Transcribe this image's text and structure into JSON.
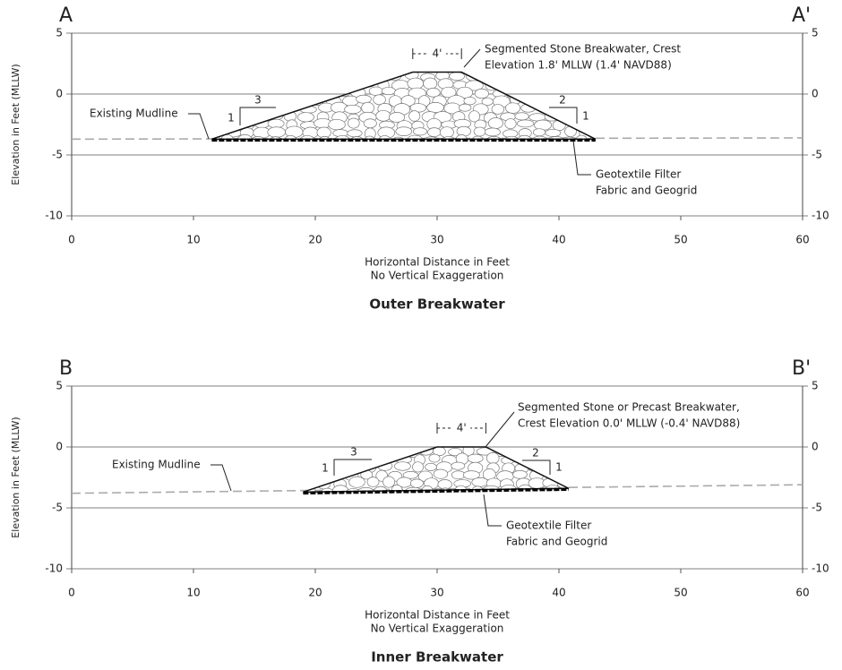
{
  "panels": [
    {
      "title": "Outer Breakwater",
      "section_start": "A",
      "section_end": "A'",
      "y_label": "Elevation in Feet (MLLW)",
      "x_label": "Horizontal Distance in Feet",
      "x_sublabel": "No Vertical Exaggeration",
      "xlim": [
        0,
        60
      ],
      "ylim": [
        -10,
        5
      ],
      "xticks": [
        0,
        10,
        20,
        30,
        40,
        50,
        60
      ],
      "yticks": [
        -10,
        -5,
        0,
        5
      ],
      "mudline": {
        "x": [
          0,
          60
        ],
        "y": [
          -3.7,
          -3.6
        ]
      },
      "breakwater": {
        "x": [
          11.5,
          28,
          32,
          43
        ],
        "y": [
          -3.7,
          1.8,
          1.8,
          -3.7
        ]
      },
      "crest_width_label": "4'",
      "slope_left": {
        "rise": "1",
        "run": "3"
      },
      "slope_right": {
        "run": "2",
        "rise": "1"
      },
      "annotations": {
        "crest": [
          "Segmented Stone Breakwater, Crest",
          "Elevation 1.8' MLLW (1.4' NAVD88)"
        ],
        "mudline": "Existing Mudline",
        "fabric": [
          "Geotextile Filter",
          "Fabric and Geogrid"
        ]
      }
    },
    {
      "title": "Inner Breakwater",
      "section_start": "B",
      "section_end": "B'",
      "y_label": "Elevation in Feet (MLLW)",
      "x_label": "Horizontal Distance in Feet",
      "x_sublabel": "No Vertical Exaggeration",
      "xlim": [
        0,
        60
      ],
      "ylim": [
        -10,
        5
      ],
      "xticks": [
        0,
        10,
        20,
        30,
        40,
        50,
        60
      ],
      "yticks": [
        -10,
        -5,
        0,
        5
      ],
      "mudline": {
        "x": [
          0,
          60
        ],
        "y": [
          -3.8,
          -3.1
        ]
      },
      "breakwater": {
        "x": [
          19,
          30,
          34,
          40.8
        ],
        "y": [
          -3.7,
          0,
          0,
          -3.4
        ]
      },
      "crest_width_label": "4'",
      "slope_left": {
        "rise": "1",
        "run": "3"
      },
      "slope_right": {
        "run": "2",
        "rise": "1"
      },
      "annotations": {
        "crest": [
          "Segmented Stone or Precast Breakwater,",
          "Crest Elevation 0.0' MLLW (-0.4' NAVD88)"
        ],
        "mudline": "Existing Mudline",
        "fabric": [
          "Geotextile Filter",
          "Fabric and Geogrid"
        ]
      }
    }
  ]
}
